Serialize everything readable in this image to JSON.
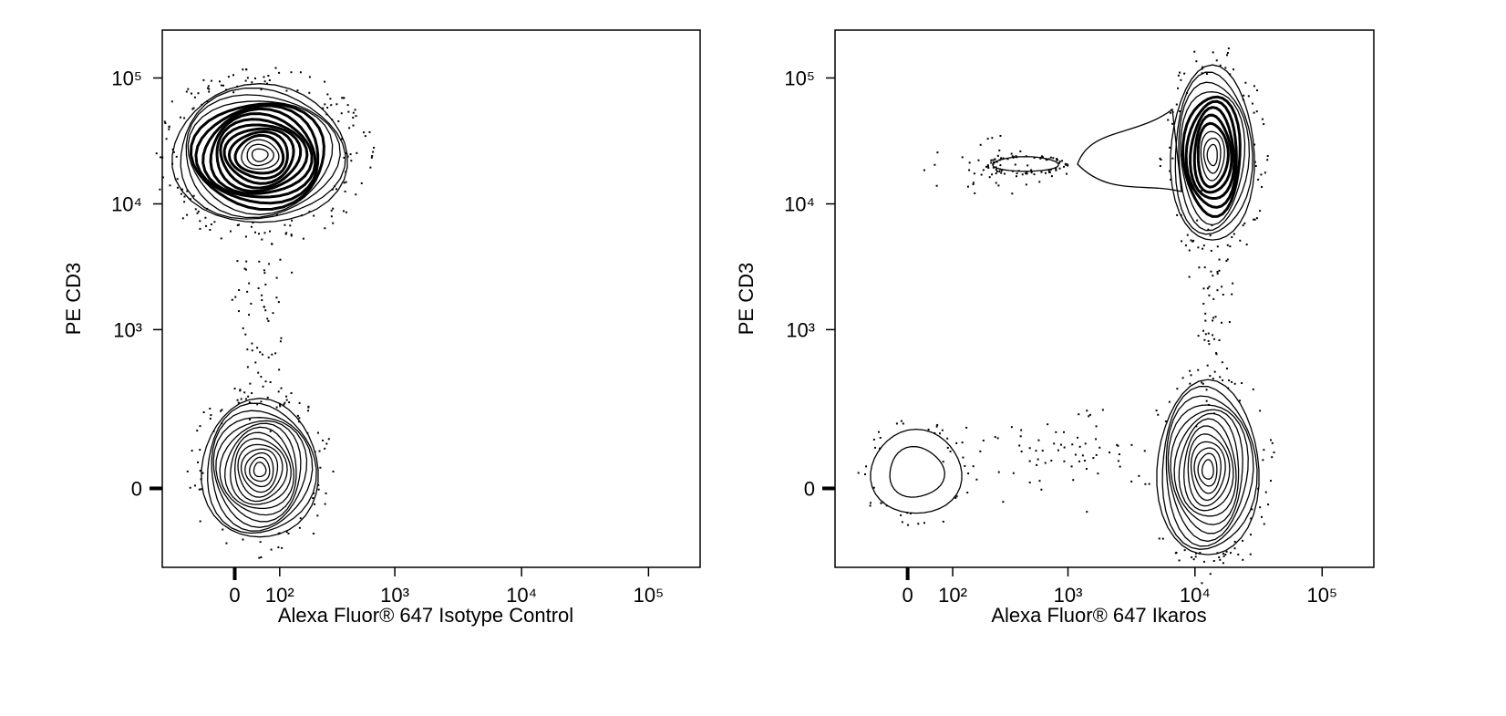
{
  "chart_data": [
    {
      "type": "contour",
      "xlabel": "Alexa Fluor® 647 Isotype Control",
      "ylabel": "PE CD3",
      "xscale": "biexponential",
      "yscale": "biexponential",
      "xlim": [
        -190,
        255000
      ],
      "ylim": [
        -220,
        240000
      ],
      "xticks": [
        0,
        {
          "value": 100,
          "label": "10²"
        },
        {
          "value": 1000,
          "label": "10³"
        },
        {
          "value": 10000,
          "label": "10⁴"
        },
        {
          "value": 100000,
          "label": "10⁵"
        }
      ],
      "yticks": [
        0,
        {
          "value": 1000,
          "label": "10³"
        },
        {
          "value": 10000,
          "label": "10⁴"
        },
        {
          "value": 100000,
          "label": "10⁵"
        }
      ]
    },
    {
      "type": "contour",
      "xlabel": "Alexa Fluor® 647 Ikaros",
      "ylabel": "PE CD3",
      "xscale": "biexponential",
      "yscale": "biexponential",
      "xlim": [
        -190,
        255000
      ],
      "ylim": [
        -220,
        240000
      ],
      "xticks": [
        0,
        {
          "value": 100,
          "label": "10²"
        },
        {
          "value": 1000,
          "label": "10³"
        },
        {
          "value": 10000,
          "label": "10⁴"
        },
        {
          "value": 100000,
          "label": "10⁵"
        }
      ],
      "yticks": [
        0,
        {
          "value": 1000,
          "label": "10³"
        },
        {
          "value": 10000,
          "label": "10⁴"
        },
        {
          "value": 100000,
          "label": "10⁵"
        }
      ]
    }
  ]
}
